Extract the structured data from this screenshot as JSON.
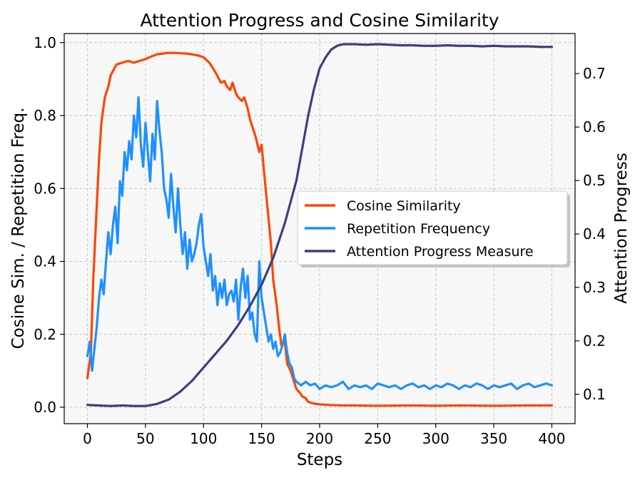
{
  "chart_data": {
    "type": "line",
    "title": "Attention Progress and Cosine Similarity",
    "xlabel": "Steps",
    "ylabel_left": "Cosine Sim. / Repetition Freq.",
    "ylabel_right": "Attention Progress",
    "xlim": [
      -20,
      420
    ],
    "ylim_left": [
      -0.045,
      1.025
    ],
    "ylim_right": [
      0.045,
      0.775
    ],
    "xticks": [
      0,
      50,
      100,
      150,
      200,
      250,
      300,
      350,
      400
    ],
    "xtick_labels": [
      "0",
      "50",
      "100",
      "150",
      "200",
      "250",
      "300",
      "350",
      "400"
    ],
    "yticks_left": [
      0.0,
      0.2,
      0.4,
      0.6,
      0.8,
      1.0
    ],
    "ytick_labels_left": [
      "0.0",
      "0.2",
      "0.4",
      "0.6",
      "0.8",
      "1.0"
    ],
    "yticks_right": [
      0.1,
      0.2,
      0.3,
      0.4,
      0.5,
      0.6,
      0.7
    ],
    "ytick_labels_right": [
      "0.1",
      "0.2",
      "0.3",
      "0.4",
      "0.5",
      "0.6",
      "0.7"
    ],
    "grid": true,
    "legend_position": "center-right",
    "series": [
      {
        "name": "Cosine Similarity",
        "color": "#ff4500",
        "axis": "left",
        "x": [
          0,
          3,
          5,
          8,
          10,
          12,
          15,
          18,
          20,
          25,
          30,
          35,
          40,
          45,
          50,
          55,
          60,
          65,
          70,
          75,
          80,
          85,
          90,
          95,
          100,
          105,
          110,
          115,
          118,
          120,
          123,
          125,
          128,
          130,
          133,
          135,
          138,
          140,
          143,
          145,
          148,
          150,
          152,
          155,
          158,
          160,
          163,
          165,
          167,
          170,
          172,
          175,
          178,
          180,
          183,
          185,
          188,
          190,
          195,
          200,
          210,
          220,
          230,
          250,
          280,
          300,
          320,
          350,
          380,
          400
        ],
        "y": [
          0.08,
          0.15,
          0.35,
          0.55,
          0.68,
          0.78,
          0.85,
          0.88,
          0.91,
          0.94,
          0.945,
          0.95,
          0.945,
          0.95,
          0.955,
          0.962,
          0.968,
          0.97,
          0.972,
          0.972,
          0.971,
          0.97,
          0.968,
          0.965,
          0.96,
          0.945,
          0.92,
          0.89,
          0.895,
          0.88,
          0.87,
          0.89,
          0.86,
          0.85,
          0.84,
          0.85,
          0.82,
          0.79,
          0.76,
          0.74,
          0.7,
          0.72,
          0.65,
          0.55,
          0.45,
          0.35,
          0.28,
          0.22,
          0.17,
          0.18,
          0.12,
          0.1,
          0.07,
          0.05,
          0.04,
          0.03,
          0.025,
          0.015,
          0.01,
          0.008,
          0.006,
          0.005,
          0.005,
          0.004,
          0.005,
          0.004,
          0.005,
          0.004,
          0.005,
          0.005
        ]
      },
      {
        "name": "Repetition Frequency",
        "color": "#1e90ff",
        "axis": "left",
        "x": [
          0,
          2,
          4,
          6,
          8,
          10,
          12,
          14,
          16,
          18,
          20,
          22,
          24,
          26,
          28,
          30,
          32,
          34,
          36,
          38,
          40,
          42,
          44,
          46,
          48,
          50,
          52,
          54,
          56,
          58,
          60,
          62,
          64,
          66,
          68,
          70,
          72,
          74,
          76,
          78,
          80,
          82,
          84,
          86,
          88,
          90,
          92,
          94,
          96,
          98,
          100,
          102,
          104,
          106,
          108,
          110,
          112,
          114,
          116,
          118,
          120,
          122,
          124,
          126,
          128,
          130,
          132,
          134,
          136,
          138,
          140,
          142,
          144,
          146,
          148,
          150,
          152,
          154,
          156,
          158,
          160,
          162,
          164,
          166,
          168,
          170,
          172,
          174,
          176,
          178,
          180,
          184,
          188,
          192,
          196,
          200,
          205,
          210,
          215,
          220,
          225,
          230,
          235,
          240,
          245,
          250,
          255,
          260,
          265,
          270,
          275,
          280,
          285,
          290,
          295,
          300,
          305,
          310,
          315,
          320,
          325,
          330,
          335,
          340,
          345,
          350,
          355,
          360,
          365,
          370,
          375,
          380,
          385,
          390,
          395,
          400
        ],
        "y": [
          0.14,
          0.18,
          0.1,
          0.16,
          0.22,
          0.3,
          0.35,
          0.31,
          0.4,
          0.48,
          0.42,
          0.5,
          0.55,
          0.45,
          0.62,
          0.58,
          0.7,
          0.65,
          0.73,
          0.68,
          0.8,
          0.74,
          0.85,
          0.72,
          0.66,
          0.78,
          0.7,
          0.62,
          0.75,
          0.68,
          0.84,
          0.76,
          0.7,
          0.6,
          0.57,
          0.52,
          0.64,
          0.55,
          0.48,
          0.6,
          0.5,
          0.42,
          0.48,
          0.38,
          0.46,
          0.4,
          0.42,
          0.45,
          0.5,
          0.53,
          0.44,
          0.4,
          0.36,
          0.42,
          0.32,
          0.36,
          0.28,
          0.34,
          0.3,
          0.35,
          0.28,
          0.31,
          0.32,
          0.29,
          0.35,
          0.24,
          0.33,
          0.38,
          0.3,
          0.36,
          0.24,
          0.26,
          0.2,
          0.18,
          0.4,
          0.3,
          0.26,
          0.22,
          0.18,
          0.2,
          0.16,
          0.18,
          0.14,
          0.15,
          0.17,
          0.2,
          0.15,
          0.12,
          0.11,
          0.08,
          0.07,
          0.06,
          0.07,
          0.06,
          0.065,
          0.05,
          0.06,
          0.055,
          0.06,
          0.07,
          0.05,
          0.06,
          0.055,
          0.06,
          0.05,
          0.065,
          0.06,
          0.055,
          0.06,
          0.05,
          0.06,
          0.065,
          0.055,
          0.06,
          0.05,
          0.06,
          0.055,
          0.065,
          0.06,
          0.05,
          0.06,
          0.055,
          0.065,
          0.06,
          0.05,
          0.06,
          0.055,
          0.06,
          0.065,
          0.05,
          0.06,
          0.065,
          0.055,
          0.06,
          0.065,
          0.06
        ]
      },
      {
        "name": "Attention Progress Measure",
        "color": "#3b3f7f",
        "axis": "right",
        "x": [
          0,
          10,
          20,
          30,
          40,
          50,
          60,
          70,
          80,
          90,
          100,
          110,
          120,
          130,
          140,
          150,
          160,
          170,
          180,
          185,
          190,
          195,
          200,
          205,
          210,
          215,
          220,
          230,
          240,
          250,
          260,
          270,
          280,
          290,
          300,
          310,
          320,
          330,
          340,
          350,
          360,
          370,
          380,
          390,
          400
        ],
        "y": [
          0.08,
          0.079,
          0.078,
          0.079,
          0.078,
          0.078,
          0.082,
          0.09,
          0.105,
          0.125,
          0.15,
          0.175,
          0.2,
          0.23,
          0.265,
          0.305,
          0.355,
          0.42,
          0.5,
          0.56,
          0.62,
          0.67,
          0.71,
          0.73,
          0.745,
          0.752,
          0.755,
          0.755,
          0.754,
          0.755,
          0.754,
          0.753,
          0.753,
          0.752,
          0.752,
          0.753,
          0.752,
          0.752,
          0.751,
          0.752,
          0.751,
          0.751,
          0.751,
          0.75,
          0.75
        ]
      }
    ]
  }
}
